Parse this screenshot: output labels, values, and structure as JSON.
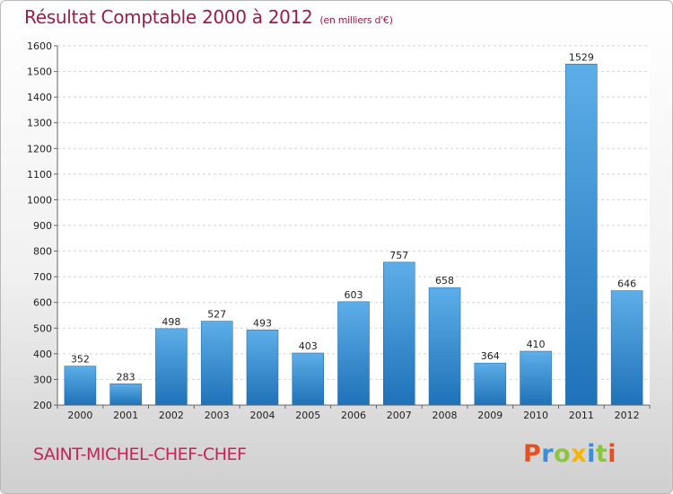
{
  "header": {
    "title": "Résultat Comptable 2000 à 2012",
    "subtitle": "(en milliers d'€)"
  },
  "footer": {
    "city": "SAINT-MICHEL-CHEF-CHEF",
    "logo": {
      "text": "Proxiti",
      "letters": [
        "P",
        "r",
        "o",
        "x",
        "i",
        "t",
        "i"
      ],
      "colors": [
        "#e6501e",
        "#3a8dd9",
        "#8cc63f",
        "#f7b500",
        "#3a8dd9",
        "#8cc63f",
        "#e6501e"
      ]
    }
  },
  "chart_data": {
    "type": "bar",
    "categories": [
      "2000",
      "2001",
      "2002",
      "2003",
      "2004",
      "2005",
      "2006",
      "2007",
      "2008",
      "2009",
      "2010",
      "2011",
      "2012"
    ],
    "values": [
      352,
      283,
      498,
      527,
      493,
      403,
      603,
      757,
      658,
      364,
      410,
      1529,
      646
    ],
    "data_labels": [
      "352",
      "283",
      "498",
      "527",
      "493",
      "403",
      "603",
      "757",
      "658",
      "364",
      "410",
      "1529",
      "646"
    ],
    "title": "Résultat Comptable 2000 à 2012",
    "subtitle": "(en milliers d'€)",
    "xlabel": "",
    "ylabel": "",
    "ylim": [
      200,
      1600
    ],
    "yticks": [
      200,
      300,
      400,
      500,
      600,
      700,
      800,
      900,
      1000,
      1100,
      1200,
      1300,
      1400,
      1500,
      1600
    ],
    "grid": true,
    "legend": "none",
    "colors": {
      "bar_light": "#5daee8",
      "bar_dark": "#1f72b8",
      "grid": "#d4d4d4",
      "axis": "#666666"
    }
  }
}
